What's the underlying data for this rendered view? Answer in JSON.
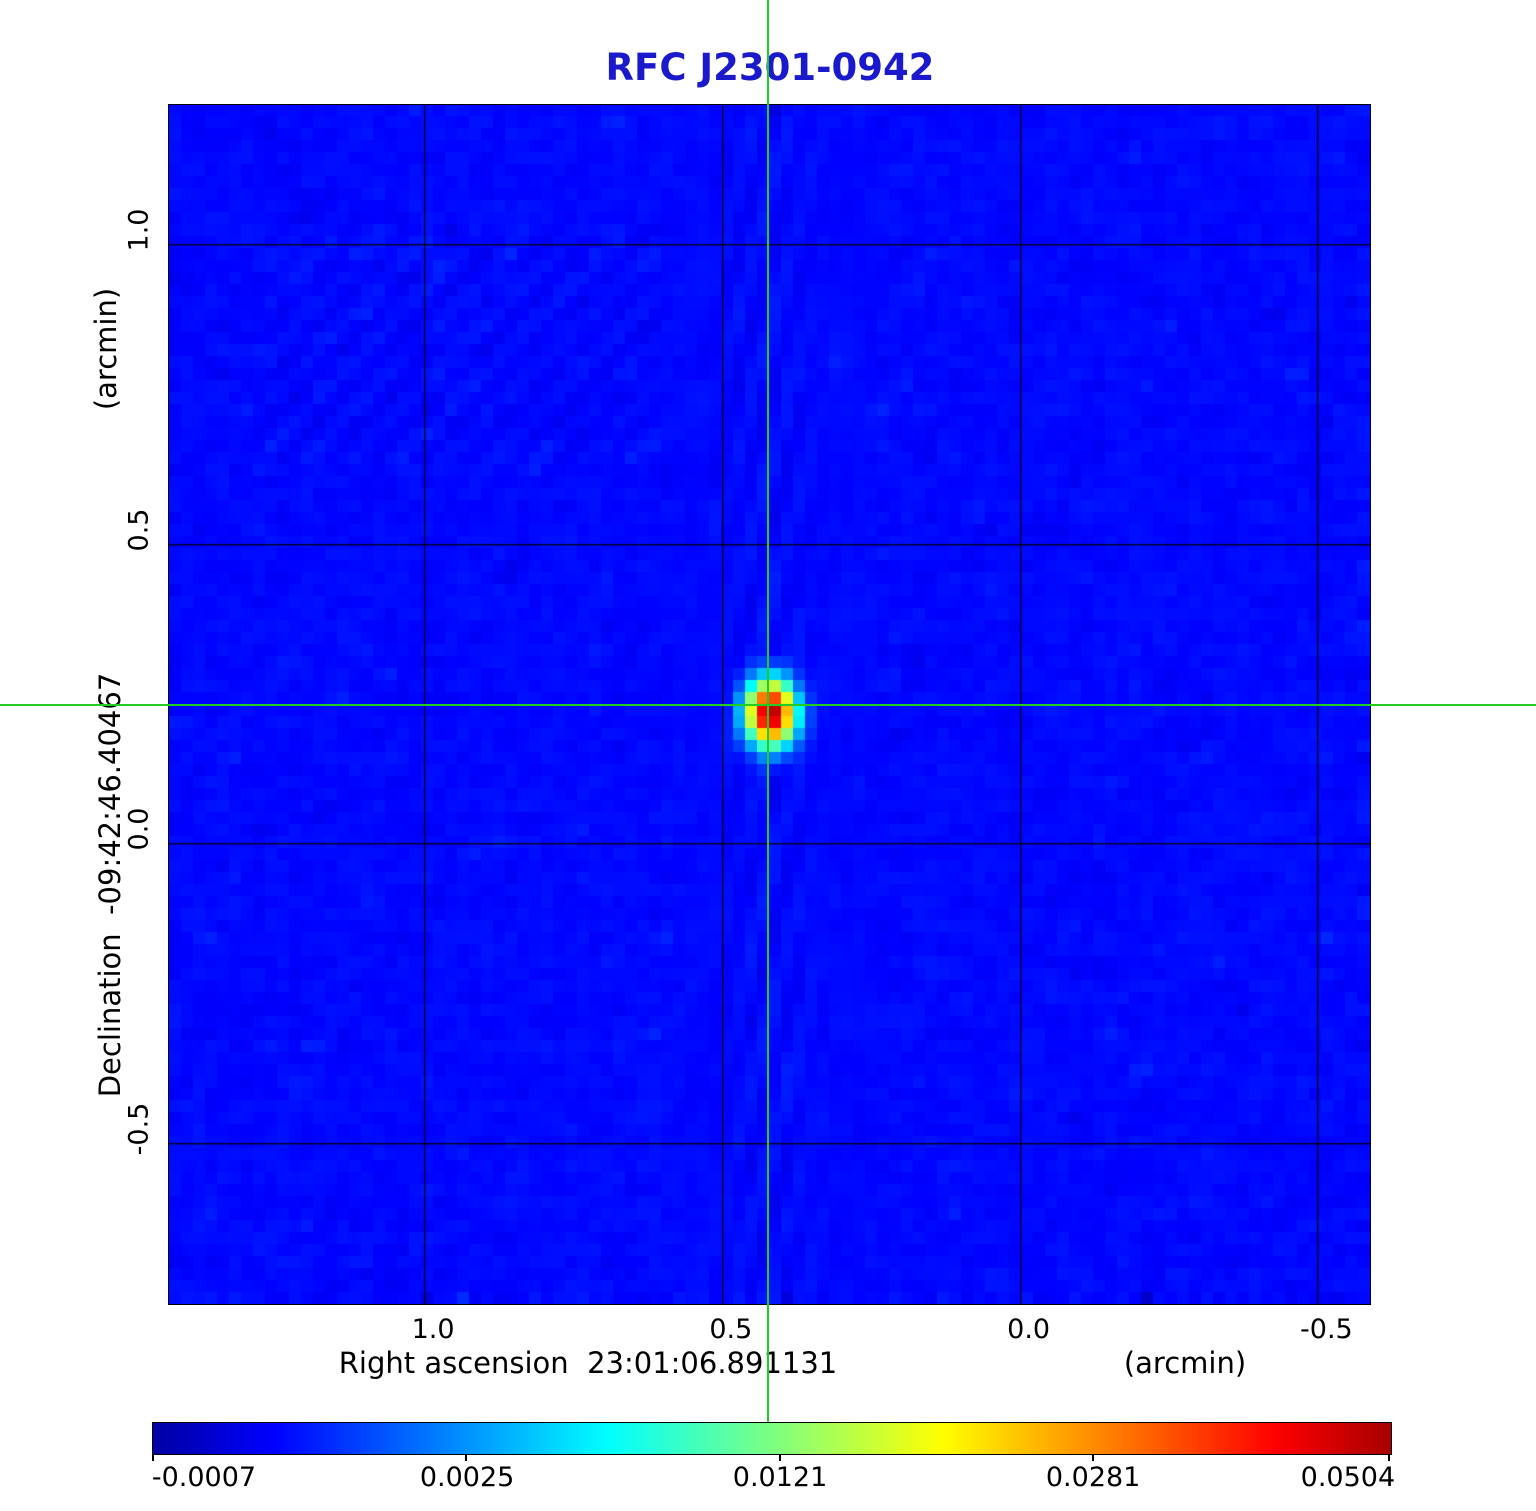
{
  "title": {
    "text": "RFC J2301-0942",
    "color": "#1a1acc"
  },
  "axes": {
    "x": {
      "label": "Right ascension  23:01:06.891131",
      "unit": "(arcmin)",
      "tick_labels": [
        "1.0",
        "0.5",
        "0.0",
        "-0.5"
      ]
    },
    "y": {
      "label": "Declination  -09:42:46.40467",
      "unit": "(arcmin)",
      "tick_labels": [
        "1.0",
        "0.5",
        "0.0",
        "-0.5"
      ]
    }
  },
  "colorbar": {
    "tick_labels": [
      "-0.0007",
      "0.0025",
      "0.0121",
      "0.0281",
      "0.0504"
    ],
    "colormap": "jet"
  },
  "crosshair": {
    "color": "#22cc22",
    "x_arcmin": 0.423,
    "y_arcmin": 0.23
  },
  "chart_data": {
    "type": "heatmap",
    "title": "RFC J2301-0942",
    "xlabel": "Right ascension  23:01:06.891131 (arcmin)",
    "ylabel": "Declination  -09:42:46.40467 (arcmin)",
    "x_ticks_arcmin": [
      1.0,
      0.5,
      0.0,
      -0.5
    ],
    "y_ticks_arcmin": [
      1.0,
      0.5,
      0.0,
      -0.5
    ],
    "xlim_arcmin": [
      1.43,
      -0.59
    ],
    "ylim_arcmin": [
      -0.77,
      1.233
    ],
    "grid": true,
    "colormap": "jet",
    "intensity_scale": "sqrt",
    "vmin": -0.0007,
    "vmax": 0.0504,
    "colorbar_values": [
      -0.0007,
      0.0025,
      0.0121,
      0.0281,
      0.0504
    ],
    "source": {
      "ra": "23:01:06.891131",
      "dec": "-09:42:46.40467",
      "x_offset_arcmin": 0.425,
      "y_offset_arcmin": 0.228,
      "peak_intensity": 0.0504,
      "sigma_x_arcmin": 0.06,
      "sigma_y_arcmin": 0.078
    },
    "background_noise_rms": 0.0004,
    "n_pixels": 100
  }
}
